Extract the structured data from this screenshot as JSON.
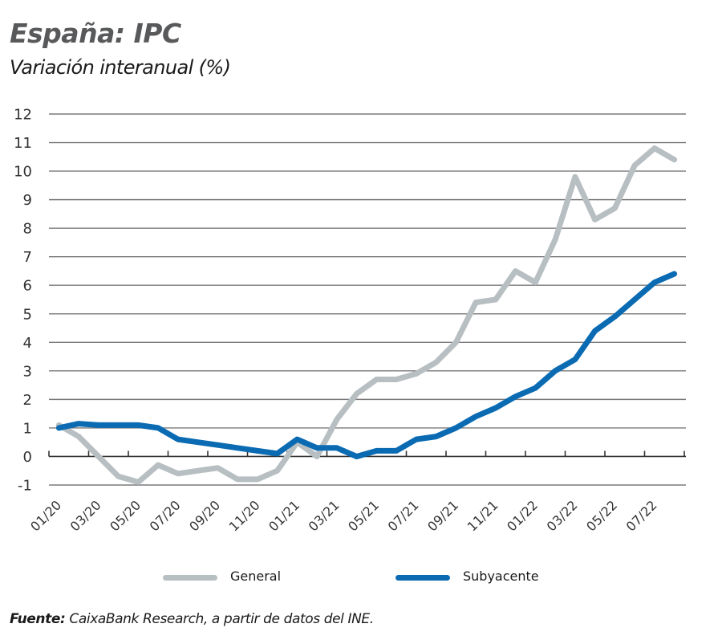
{
  "header": {
    "title": "España: IPC",
    "subtitle": "Variación interanual (%)"
  },
  "chart_data": {
    "type": "line",
    "title": "España: IPC",
    "subtitle": "Variación interanual (%)",
    "xlabel": "",
    "ylabel": "",
    "ylim": [
      -1,
      12
    ],
    "yticks": [
      "12",
      "11",
      "10",
      "9",
      "8",
      "7",
      "6",
      "5",
      "4",
      "3",
      "2",
      "1",
      "0",
      "-1"
    ],
    "grid": true,
    "legend_position": "bottom",
    "x": [
      "01/20",
      "02/20",
      "03/20",
      "04/20",
      "05/20",
      "06/20",
      "07/20",
      "08/20",
      "09/20",
      "10/20",
      "11/20",
      "12/20",
      "01/21",
      "02/21",
      "03/21",
      "04/21",
      "05/21",
      "06/21",
      "07/21",
      "08/21",
      "09/21",
      "10/21",
      "11/21",
      "12/21",
      "01/22",
      "02/22",
      "03/22",
      "04/22",
      "05/22",
      "06/22",
      "07/22",
      "08/22"
    ],
    "xtick_labels": [
      "01/20",
      "03/20",
      "05/20",
      "07/20",
      "09/20",
      "11/20",
      "01/21",
      "03/21",
      "05/21",
      "07/21",
      "09/21",
      "11/21",
      "01/22",
      "03/22",
      "05/22",
      "07/22"
    ],
    "series": [
      {
        "name": "General",
        "color": "#b7bfc2",
        "values": [
          1.1,
          0.7,
          0.0,
          -0.7,
          -0.9,
          -0.3,
          -0.6,
          -0.5,
          -0.4,
          -0.8,
          -0.8,
          -0.5,
          0.5,
          0.0,
          1.3,
          2.2,
          2.7,
          2.7,
          2.9,
          3.3,
          4.0,
          5.4,
          5.5,
          6.5,
          6.1,
          7.6,
          9.8,
          8.3,
          8.7,
          10.2,
          10.8,
          10.4
        ]
      },
      {
        "name": "Subyacente",
        "color": "#0a6bb3",
        "values": [
          1.0,
          1.15,
          1.1,
          1.1,
          1.1,
          1.0,
          0.6,
          0.5,
          0.4,
          0.3,
          0.2,
          0.1,
          0.6,
          0.3,
          0.3,
          0.0,
          0.2,
          0.2,
          0.6,
          0.7,
          1.0,
          1.4,
          1.7,
          2.1,
          2.4,
          3.0,
          3.4,
          4.4,
          4.9,
          5.5,
          6.1,
          6.4
        ]
      }
    ]
  },
  "legend": [
    {
      "label": "General",
      "color": "#b7bfc2"
    },
    {
      "label": "Subyacente",
      "color": "#0a6bb3"
    }
  ],
  "footer": {
    "source_label": "Fuente:",
    "source_text": " CaixaBank Research, a partir de datos del INE."
  }
}
